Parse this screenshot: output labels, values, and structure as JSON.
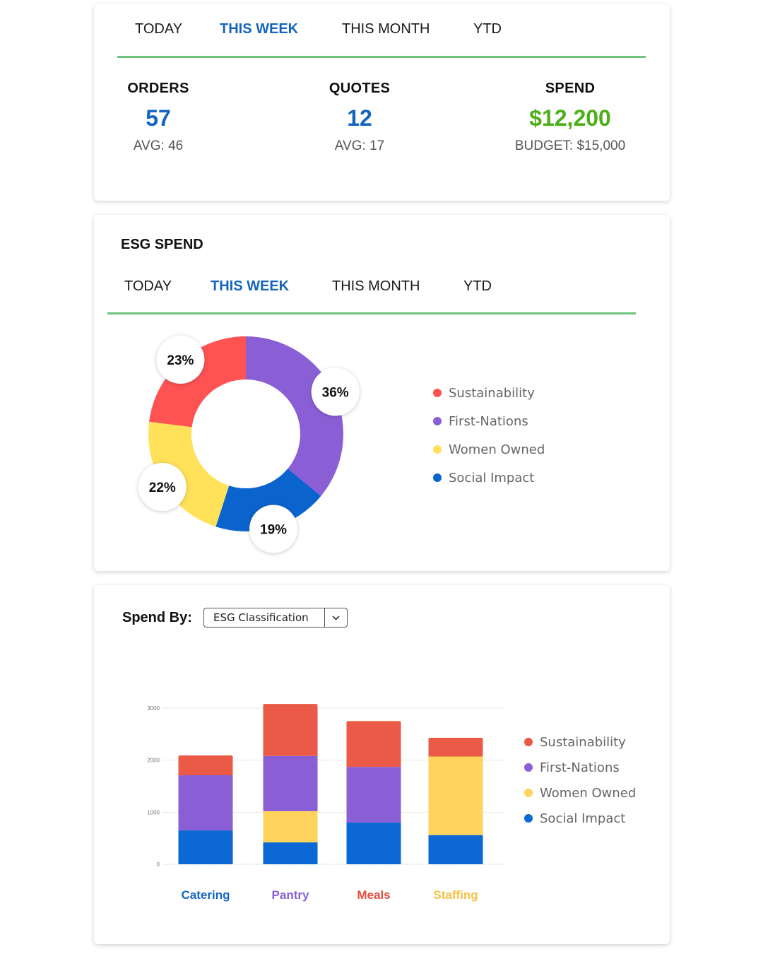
{
  "summary": {
    "tabs": [
      {
        "label": "TODAY"
      },
      {
        "label": "THIS WEEK",
        "active": true
      },
      {
        "label": "THIS MONTH"
      },
      {
        "label": "YTD"
      }
    ],
    "stats": {
      "orders": {
        "label": "ORDERS",
        "value": "57",
        "sub": "AVG: 46",
        "color": "#1565c0"
      },
      "quotes": {
        "label": "QUOTES",
        "value": "12",
        "sub": "AVG: 17",
        "color": "#1565c0"
      },
      "spend": {
        "label": "SPEND",
        "value": "$12,200",
        "sub": "BUDGET: $15,000",
        "color": "#4caf18"
      }
    }
  },
  "esg": {
    "title": "ESG SPEND",
    "tabs": [
      {
        "label": "TODAY"
      },
      {
        "label": "THIS WEEK",
        "active": true
      },
      {
        "label": "THIS MONTH"
      },
      {
        "label": "YTD"
      }
    ],
    "legend": [
      {
        "label": "Sustainability",
        "color": "#ff5252"
      },
      {
        "label": "First-Nations",
        "color": "#8a5fd6"
      },
      {
        "label": "Women Owned",
        "color": "#ffe15a"
      },
      {
        "label": "Social Impact",
        "color": "#0b63ce"
      }
    ]
  },
  "spend_by": {
    "label": "Spend By:",
    "selected": "ESG Classification",
    "legend": [
      {
        "label": "Sustainability",
        "color": "#ea5a47"
      },
      {
        "label": "First-Nations",
        "color": "#8a5fd6"
      },
      {
        "label": "Women Owned",
        "color": "#ffd35c"
      },
      {
        "label": "Social Impact",
        "color": "#0b68d4"
      }
    ]
  },
  "chart_data": [
    {
      "type": "pie",
      "labels": [
        "First-Nations",
        "Social Impact",
        "Women Owned",
        "Sustainability"
      ],
      "values": [
        36,
        19,
        22,
        23
      ],
      "data_labels": [
        "36%",
        "19%",
        "22%",
        "23%"
      ],
      "colors": [
        "#8a5fd6",
        "#0b63ce",
        "#ffe15a",
        "#ff5252"
      ],
      "donut": true,
      "legend_position": "right"
    },
    {
      "type": "bar",
      "stacked": true,
      "categories": [
        "Catering",
        "Pantry",
        "Meals",
        "Staffing"
      ],
      "category_colors": [
        "#1565c0",
        "#8a5fd6",
        "#e74c3c",
        "#f5c242"
      ],
      "series": [
        {
          "name": "Social Impact",
          "color": "#0b68d4",
          "values": [
            650,
            420,
            800,
            560
          ]
        },
        {
          "name": "Women Owned",
          "color": "#ffd35c",
          "values": [
            0,
            600,
            0,
            1510
          ]
        },
        {
          "name": "First-Nations",
          "color": "#8a5fd6",
          "values": [
            1060,
            1060,
            1070,
            0
          ]
        },
        {
          "name": "Sustainability",
          "color": "#ea5a47",
          "values": [
            380,
            1000,
            880,
            360
          ]
        }
      ],
      "yticks": [
        0,
        1000,
        2000,
        3000
      ],
      "ylim": [
        0,
        3140
      ],
      "grid": true,
      "legend_position": "right"
    }
  ]
}
